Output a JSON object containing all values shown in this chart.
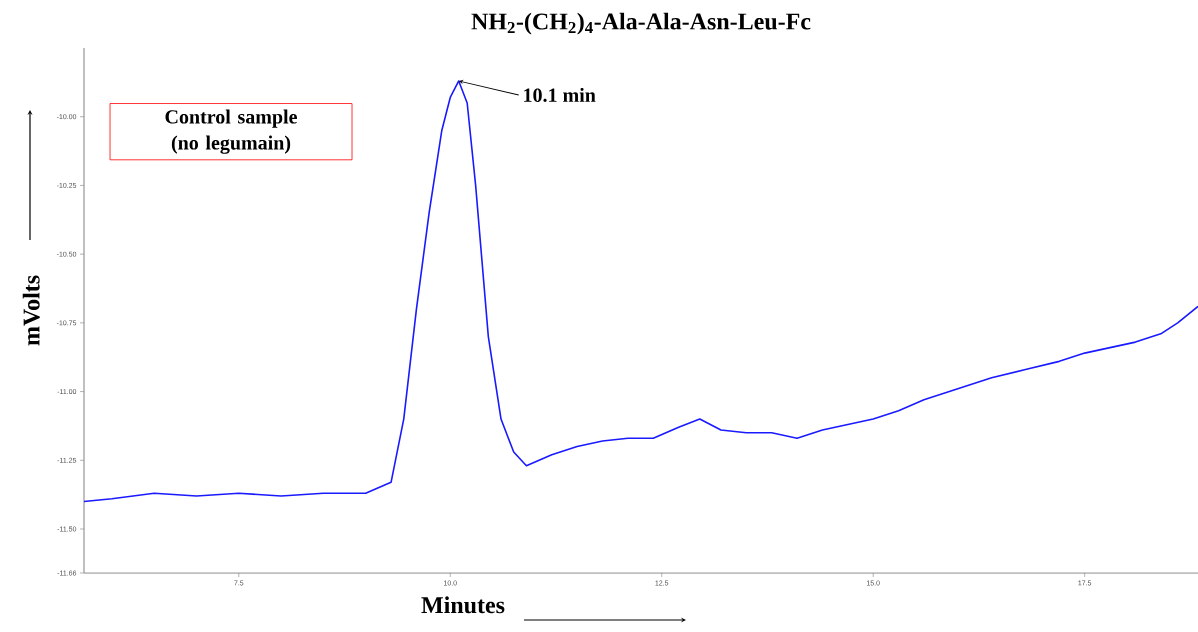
{
  "chart_data": {
    "type": "line",
    "title": "NH$_{2}$-(CH$_{2}$)$_{4}$-Ala-Ala-Asn-Leu-Fc",
    "xlabel": "Minutes",
    "ylabel": "mVolts",
    "x": [
      5.67,
      6.0,
      6.5,
      7.0,
      7.5,
      8.0,
      8.5,
      9.0,
      9.3,
      9.45,
      9.6,
      9.75,
      9.9,
      10.0,
      10.1,
      10.2,
      10.3,
      10.45,
      10.6,
      10.75,
      10.9,
      11.2,
      11.5,
      11.8,
      12.1,
      12.4,
      12.7,
      12.95,
      13.2,
      13.5,
      13.8,
      14.1,
      14.4,
      14.7,
      15.0,
      15.3,
      15.6,
      16.0,
      16.4,
      16.8,
      17.2,
      17.5,
      17.8,
      18.1,
      18.4,
      18.6,
      18.84
    ],
    "series": [
      {
        "color": "#1a1aff",
        "values": [
          -11.4,
          -11.39,
          -11.37,
          -11.38,
          -11.37,
          -11.38,
          -11.37,
          -11.37,
          -11.33,
          -11.1,
          -10.7,
          -10.35,
          -10.05,
          -9.93,
          -9.87,
          -9.95,
          -10.25,
          -10.8,
          -11.1,
          -11.22,
          -11.27,
          -11.23,
          -11.2,
          -11.18,
          -11.17,
          -11.17,
          -11.13,
          -11.1,
          -11.14,
          -11.15,
          -11.15,
          -11.17,
          -11.14,
          -11.12,
          -11.1,
          -11.07,
          -11.03,
          -10.99,
          -10.95,
          -10.92,
          -10.89,
          -10.86,
          -10.84,
          -10.82,
          -10.79,
          -10.75,
          -10.69
        ]
      }
    ],
    "xlim": [
      5.67,
      18.84
    ],
    "ylim": [
      -11.66,
      -9.75
    ],
    "xticks": [
      7.5,
      {
        "value": 10,
        "label": "10.0"
      },
      12.5,
      {
        "value": 15,
        "label": "15.0"
      },
      17.5
    ],
    "yticks": [
      -11.66,
      {
        "value": -11.5,
        "label": "-11.50"
      },
      -11.25,
      {
        "value": -11,
        "label": "-11.00"
      },
      -10.75,
      {
        "value": -10.5,
        "label": "-10.50"
      },
      -10.25,
      {
        "value": -10,
        "label": "-10.00"
      }
    ],
    "annotations": [
      {
        "text": "10.1 min",
        "x": 10.1,
        "y": -9.87
      },
      "Control sample (no legumain)"
    ],
    "line_style": "solid",
    "grid": false
  }
}
